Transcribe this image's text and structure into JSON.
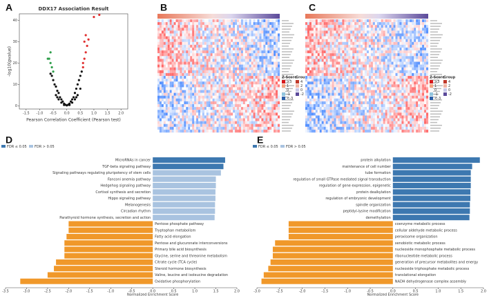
{
  "chart_data": [
    {
      "type": "scatter",
      "label": "A",
      "title": "DDX17 Association Result",
      "x_label": "Pearson Correlation Coefficient (Pearson test)",
      "y_label": "-log10(pvalue)",
      "xlim": [
        -1.75,
        2.25
      ],
      "ylim": [
        -1.5,
        43
      ],
      "xticks": [
        -1.5,
        {
          "value": -1,
          "label": "-1.0"
        },
        -0.5,
        {
          "value": 0,
          "label": "0.0"
        },
        0.5,
        {
          "value": 1,
          "label": "1.0"
        },
        1.5,
        {
          "value": 2,
          "label": "2.0"
        }
      ],
      "yticks": [
        0,
        10,
        20,
        30,
        40
      ],
      "series": [
        {
          "color": "#111111",
          "x": [
            -0.5,
            -0.45,
            -0.4,
            -0.35,
            -0.3,
            -0.25,
            -0.2,
            -0.15,
            -0.1,
            -0.05,
            0,
            0.05,
            0.1,
            0.15,
            0.2,
            0.25,
            0.3,
            0.35,
            0.4,
            0.45,
            0.5,
            -0.4,
            -0.3,
            -0.2,
            0.2,
            0.3,
            0.4,
            0.5,
            0.55,
            -0.55,
            -0.6,
            0.1,
            -0.1,
            0.35,
            -0.35
          ],
          "values": [
            12,
            10,
            9,
            7,
            6,
            4,
            3,
            2,
            1,
            0.5,
            0.2,
            0.5,
            1,
            2,
            3,
            4,
            6,
            8,
            10,
            12,
            14,
            5,
            3,
            1.5,
            1.5,
            3,
            5,
            8,
            16,
            14,
            15,
            0.4,
            0.4,
            4,
            4
          ]
        },
        {
          "color": "#e03030",
          "x": [
            0.6,
            0.65,
            0.7,
            0.75,
            0.8,
            0.7,
            0.6,
            0.65,
            1.0,
            1.2
          ],
          "values": [
            20,
            22,
            25,
            28,
            31,
            33,
            18,
            30,
            41.5,
            42.5
          ]
        },
        {
          "color": "#2e9e4a",
          "x": [
            -0.55,
            -0.6,
            -0.65,
            -0.6,
            -0.7,
            -0.5
          ],
          "values": [
            18,
            20,
            22,
            25,
            22,
            16
          ]
        }
      ]
    },
    {
      "type": "heatmap",
      "label": "B",
      "legend_title": "Z-Score",
      "group_title": "Group",
      "zscore_labels": [
        ">3",
        "1",
        "0",
        "-1",
        "<-3"
      ],
      "group_labels": [
        "4",
        "2",
        "0",
        "-2"
      ]
    },
    {
      "type": "heatmap",
      "label": "C",
      "legend_title": "Z-Score",
      "group_title": "Group",
      "zscore_labels": [
        ">3",
        "1",
        "0",
        "-1",
        "<-3"
      ],
      "group_labels": [
        "4",
        "2",
        "0",
        "-2"
      ]
    },
    {
      "type": "hbar",
      "label": "D",
      "x_label": "Normalized Enrichment Score",
      "legend": [
        {
          "name": "FDR ≤ 0.05",
          "color": "#3d78b0"
        },
        {
          "name": "FDR > 0.05",
          "color": "#a9c3e0"
        }
      ],
      "xlim": [
        -3.5,
        2.0
      ],
      "xticks": [
        -3.5,
        {
          "value": -3,
          "label": "-3.0"
        },
        -2.5,
        {
          "value": -2,
          "label": "-2.0"
        },
        -1.5,
        {
          "value": -1,
          "label": "-1.0"
        },
        -0.5,
        {
          "value": 0,
          "label": "0.0"
        },
        0.5,
        {
          "value": 1,
          "label": "1.0"
        },
        1.5,
        {
          "value": 2,
          "label": "2.0"
        }
      ],
      "categories": [
        "MicroRNAs in cancer",
        "TGF-beta signaling pathway",
        "Signaling pathways regulating pluripotency of stem cells",
        "Fanconi anemia pathway",
        "Hedgehog signaling pathway",
        "Cortisol synthesis and secretion",
        "Hippo signaling pathway",
        "Melanogenesis",
        "Circadian rhythm",
        "Parathyroid hormone synthesis, secretion and action",
        "Pentose phosphate pathway",
        "Tryptophan metabolism",
        "Fatty acid elongation",
        "Pentose and glucuronate interconversions",
        "Primary bile acid biosynthesis",
        "Glycine, serine and threonine metabolism",
        "Citrate cycle (TCA cycle)",
        "Steroid hormone biosynthesis",
        "Valine, leucine and isoleucine degradation",
        "Oxidative phosphorylation"
      ],
      "values": [
        1.72,
        1.68,
        1.62,
        1.5,
        1.5,
        1.49,
        1.49,
        1.48,
        1.48,
        1.47,
        -2.0,
        -2.0,
        -2.05,
        -2.1,
        -2.1,
        -2.1,
        -2.3,
        -2.35,
        -2.5,
        -3.15
      ],
      "colors": [
        "#3d78b0",
        "#3d78b0",
        "#a9c3e0",
        "#a9c3e0",
        "#a9c3e0",
        "#a9c3e0",
        "#a9c3e0",
        "#a9c3e0",
        "#a9c3e0",
        "#a9c3e0",
        "#f0982a",
        "#f0982a",
        "#f0982a",
        "#f0982a",
        "#f0982a",
        "#f0982a",
        "#f0982a",
        "#f0982a",
        "#f0982a",
        "#f0982a"
      ]
    },
    {
      "type": "hbar",
      "label": "E",
      "x_label": "Normalized Enrichment Score",
      "legend": [
        {
          "name": "FDR ≤ 0.05",
          "color": "#3d78b0"
        },
        {
          "name": "FDR > 0.05",
          "color": "#a9c3e0"
        }
      ],
      "xlim": [
        -3.0,
        2.0
      ],
      "xticks": [
        {
          "value": -3,
          "label": "-3.0"
        },
        -2.5,
        {
          "value": -2,
          "label": "-2.0"
        },
        -1.5,
        {
          "value": -1,
          "label": "-1.0"
        },
        -0.5,
        {
          "value": 0,
          "label": "0.0"
        },
        0.5,
        {
          "value": 1,
          "label": "1.0"
        },
        1.5,
        {
          "value": 2,
          "label": "2.0"
        }
      ],
      "categories": [
        "protein alkylation",
        "maintenance of cell number",
        "tube formation",
        "regulation of small GTPase mediated signal transduction",
        "regulation of gene expression, epigenetic",
        "protein dealkylation",
        "regulation of embryonic development",
        "spindle organization",
        "peptidyl-lysine modification",
        "demethylation",
        "coenzyme metabolic process",
        "cellular aldehyde metabolic process",
        "peroxisome organization",
        "xenobiotic metabolic process",
        "nucleoside monophosphate metabolic process",
        "ribonucleotide metabolic process",
        "generation of precursor metabolites and energy",
        "nucleoside triphosphate metabolic process",
        "translational elongation",
        "NADH dehydrogenase complex assembly"
      ],
      "values": [
        1.92,
        1.75,
        1.72,
        1.72,
        1.72,
        1.71,
        1.71,
        1.7,
        1.7,
        1.69,
        -2.3,
        -2.3,
        -2.3,
        -2.6,
        -2.65,
        -2.65,
        -2.7,
        -2.75,
        -2.85,
        -2.9
      ],
      "colors": [
        "#3d78b0",
        "#3d78b0",
        "#3d78b0",
        "#3d78b0",
        "#3d78b0",
        "#3d78b0",
        "#3d78b0",
        "#3d78b0",
        "#3d78b0",
        "#3d78b0",
        "#f0982a",
        "#f0982a",
        "#f0982a",
        "#f0982a",
        "#f0982a",
        "#f0982a",
        "#f0982a",
        "#f0982a",
        "#f0982a",
        "#f0982a"
      ]
    }
  ]
}
